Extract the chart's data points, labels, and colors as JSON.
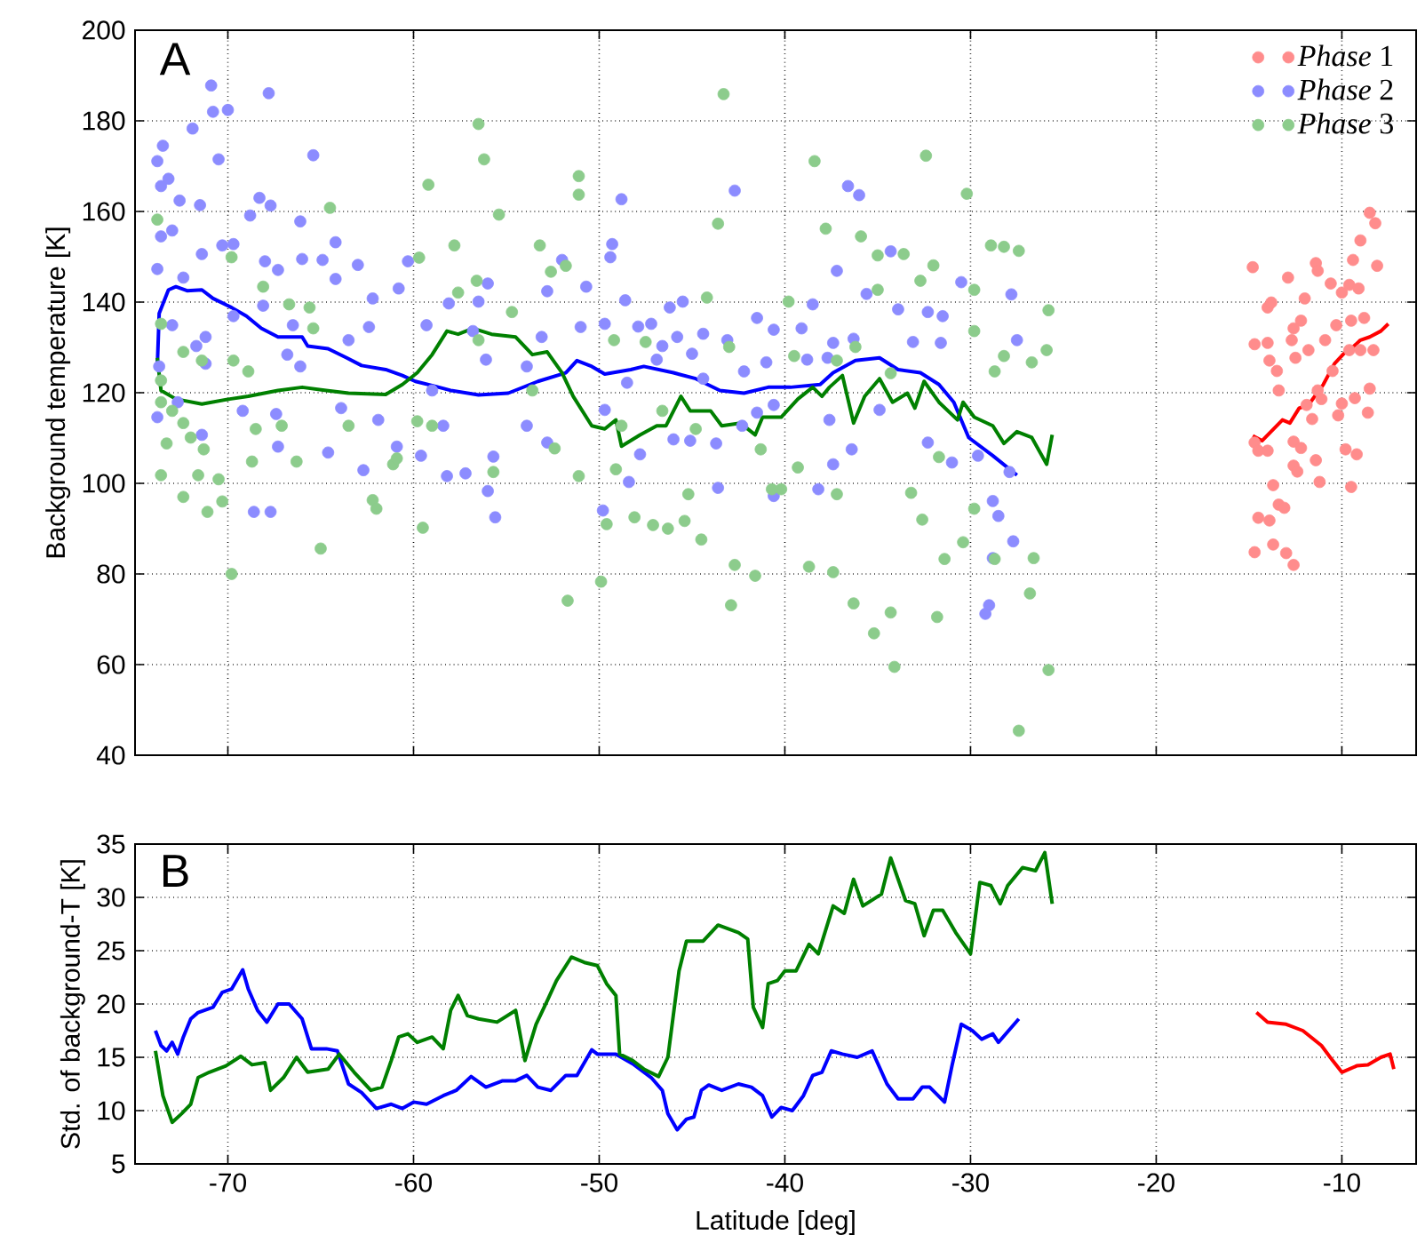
{
  "chart_data": [
    {
      "type": "scatter",
      "ylabel": "Background temperature [K]",
      "annotations": [
        "A"
      ],
      "xlim": [
        -75,
        -6
      ],
      "ylim": [
        40,
        200
      ],
      "xticks": [
        -70,
        -60,
        -50,
        -40,
        -30,
        -20,
        -10
      ],
      "yticks": [
        40,
        60,
        80,
        100,
        120,
        140,
        160,
        180,
        200
      ],
      "tick_labels": "y",
      "grid": true,
      "legend": "top right",
      "marker": "circle",
      "series": [
        {
          "name": "*Phase* 1",
          "color": "#ff8c8c",
          "x": [
            -14.8,
            -14.0,
            -13.8,
            -14.7,
            -14.0,
            -12.9,
            -12.0,
            -11.4,
            -11.3,
            -12.2,
            -12.6,
            -12.7,
            -11.8,
            -12.5,
            -13.9,
            -13.5,
            -10.9,
            -10.6,
            -10.0,
            -9.6,
            -9.1,
            -9.4,
            -9.0,
            -8.5,
            -8.2,
            -8.1,
            -10.3,
            -9.5,
            -8.8,
            -8.3,
            -9.6,
            -9.0,
            -10.5,
            -11.3,
            -11.1,
            -11.9,
            -13.4,
            -8.5,
            -9.3,
            -10.0,
            -10.2,
            -8.6,
            -11.6,
            -14.7,
            -14.5,
            -14.0,
            -12.6,
            -12.2,
            -12.6,
            -12.4,
            -11.4,
            -9.8,
            -9.2,
            -13.7,
            -11.2,
            -9.5,
            -13.4,
            -13.1,
            -14.5,
            -13.9,
            -14.7,
            -13.7,
            -13.0,
            -12.6
          ],
          "values": [
            147.7,
            138.8,
            139.9,
            130.7,
            131,
            145.4,
            140.8,
            148.6,
            146.9,
            135.9,
            134.2,
            131.6,
            129.4,
            127.7,
            127.1,
            124.8,
            131.6,
            144.1,
            142.1,
            143.8,
            143.0,
            149.3,
            153.6,
            159.7,
            157.4,
            148.0,
            134.9,
            135.9,
            136.5,
            129.4,
            129.4,
            129.4,
            124.8,
            120.5,
            118.6,
            117.3,
            120.5,
            120.9,
            118.8,
            117.6,
            115.0,
            115.6,
            114.2,
            109,
            107.2,
            107.2,
            109.2,
            107.8,
            103.9,
            102.6,
            105.1,
            107.5,
            106.4,
            99.6,
            100.3,
            99.2,
            95.3,
            94.6,
            92.4,
            91.8,
            84.8,
            86.5,
            84.6,
            82.0
          ]
        },
        {
          "name": "*Phase* 2",
          "color": "#8c8cff",
          "x": [
            -70.9,
            -70.8,
            -70.0,
            -67.8,
            -71.9,
            -73.5,
            -73.8,
            -73.6,
            -73.2,
            -72.6,
            -71.5,
            -70.5,
            -65.4,
            -68.3,
            -68.8,
            -67.7,
            -66.1,
            -73.0,
            -73.6,
            -71.4,
            -70.3,
            -69.7,
            -64.2,
            -64.9,
            -68.0,
            -66.0,
            -63.0,
            -60.3,
            -73.8,
            -72.4,
            -67.3,
            -64.2,
            -60.8,
            -62.2,
            -58.1,
            -56.5,
            -56.0,
            -52.8,
            -52.0,
            -50.7,
            -69.7,
            -68.1,
            -73.0,
            -71.2,
            -66.5,
            -62.4,
            -59.3,
            -56.8,
            -53.1,
            -51.0,
            -66.8,
            -63.5,
            -73.7,
            -71.2,
            -66.1,
            -59.0,
            -56.1,
            -53.9,
            -72.7,
            -69.2,
            -67.4,
            -63.9,
            -61.9,
            -58.4,
            -53.9,
            -52.8,
            -73.8,
            -71.4,
            -67.3,
            -64.6,
            -60.9,
            -59.6,
            -58.2,
            -57.2,
            -62.7,
            -55.7,
            -56.0,
            -55.6,
            -68.6,
            -67.7,
            -71.7,
            -48.8,
            -42.7,
            -49.3,
            -49.4,
            -37.2,
            -36.6,
            -36.0,
            -34.3,
            -30.5,
            -27.8,
            -48.6,
            -46.2,
            -45.5,
            -41.5,
            -38.5,
            -35.6,
            -33.9,
            -32.3,
            -31.5,
            -49.7,
            -47.9,
            -47.2,
            -45.8,
            -44.4,
            -43.1,
            -40.6,
            -39.1,
            -37.4,
            -36.3,
            -33.1,
            -31.6,
            -27.5,
            -46.6,
            -45.0,
            -41.0,
            -38.8,
            -37.7,
            -46.9,
            -48.5,
            -44.4,
            -42.2,
            -49.7,
            -47.8,
            -46.0,
            -45.1,
            -43.7,
            -42.3,
            -41.5,
            -40.6,
            -37.6,
            -36.4,
            -34.9,
            -32.3,
            -31.0,
            -29.6,
            -28.8,
            -28.5,
            -27.7,
            -28.8,
            -29.0,
            -29.2,
            -49.8,
            -38.2,
            -37.4,
            -40.6,
            -48.4,
            -43.6,
            -27.9
          ],
          "values": [
            187.8,
            182,
            182.4,
            186.1,
            178.3,
            174.5,
            171.1,
            165.6,
            167.2,
            162.4,
            161.4,
            171.5,
            172.4,
            163,
            159.1,
            161.3,
            157.8,
            155.8,
            154.5,
            150.6,
            152.5,
            152.8,
            153.2,
            149.3,
            149,
            149.5,
            148.2,
            149,
            147.3,
            145.4,
            147.1,
            145.1,
            143,
            140.8,
            139.7,
            140.1,
            144.1,
            142.4,
            149.3,
            143.4,
            136.9,
            139.2,
            134.9,
            132.3,
            134.9,
            134.5,
            134.9,
            133.6,
            132.3,
            134.5,
            128.4,
            131.6,
            125.8,
            126.4,
            125.8,
            120.5,
            127.3,
            125.8,
            117.9,
            116,
            115.3,
            116.6,
            114,
            112.7,
            112.7,
            109,
            114.6,
            110.7,
            108.1,
            106.8,
            108.1,
            106.1,
            101.6,
            102.2,
            102.9,
            105.9,
            98.3,
            92.5,
            93.7,
            93.7,
            130.3,
            162.7,
            164.6,
            152.8,
            149.9,
            146.9,
            165.6,
            163.6,
            151.2,
            144.4,
            141.7,
            140.4,
            138.8,
            140.1,
            136.5,
            139.5,
            141.8,
            138.4,
            137.8,
            136.9,
            135.2,
            134.6,
            135.2,
            132.3,
            133,
            131.6,
            133.9,
            134.2,
            131,
            131.9,
            131.2,
            131,
            131.6,
            130.3,
            128.6,
            126.7,
            127.3,
            127.7,
            127.3,
            122.2,
            123.1,
            124.7,
            116.2,
            106.4,
            109.7,
            109.4,
            108.8,
            112.7,
            115.6,
            117.3,
            114,
            107.5,
            116.2,
            109,
            104.6,
            106.1,
            96.1,
            92.8,
            87.2,
            83.5,
            73.1,
            71.2,
            94.0,
            98.7,
            104.2,
            97.2,
            100.3,
            99,
            102.5
          ]
        },
        {
          "name": "*Phase* 3",
          "color": "#8ccc8c",
          "x": [
            -56.5,
            -56.2,
            -59.2,
            -51.1,
            -51.1,
            -55.4,
            -64.5,
            -73.8,
            -69.8,
            -57.8,
            -53.2,
            -59.7,
            -52.6,
            -51.8,
            -57.6,
            -56.6,
            -68.1,
            -65.6,
            -66.7,
            -54.7,
            -73.6,
            -72.4,
            -71.4,
            -69.7,
            -68.9,
            -65.4,
            -73.6,
            -73.6,
            -73.0,
            -72.4,
            -72.0,
            -73.3,
            -71.3,
            -68.5,
            -68.7,
            -67.1,
            -66.3,
            -63.5,
            -61.1,
            -60.9,
            -59.8,
            -59.0,
            -73.6,
            -71.6,
            -70.5,
            -72.4,
            -71.1,
            -70.3,
            -62.2,
            -62.0,
            -59.5,
            -65.0,
            -69.8,
            -51.7,
            -55.7,
            -52.4,
            -53.6,
            -56.5,
            -49.9,
            -43.3,
            -38.4,
            -32.4,
            -30.2,
            -43.6,
            -37.8,
            -35.9,
            -35.0,
            -33.6,
            -32.0,
            -28.9,
            -28.2,
            -27.4,
            -32.7,
            -29.8,
            -25.8,
            -25.9,
            -26.7,
            -28.2,
            -44.2,
            -39.8,
            -36.2,
            -35.0,
            -49.2,
            -47.5,
            -43.0,
            -39.5,
            -46.6,
            -44.8,
            -41.3,
            -48.8,
            -49.1,
            -39.3,
            -31.7,
            -49.6,
            -48.1,
            -47.1,
            -46.3,
            -45.4,
            -44.5,
            -45.2,
            -40.7,
            -40.2,
            -37.2,
            -33.2,
            -32.6,
            -29.8,
            -30.4,
            -31.4,
            -28.7,
            -26.6,
            -26.8,
            -37.4,
            -38.7,
            -41.6,
            -42.7,
            -42.9,
            -36.3,
            -35.2,
            -34.3,
            -31.8,
            -34.1,
            -25.8,
            -27.4,
            -34.3,
            -37.2,
            -29.8,
            -28.7,
            -51.1
          ],
          "values": [
            179.3,
            171.5,
            165.9,
            167.8,
            163.7,
            159.3,
            160.8,
            158.2,
            149.9,
            152.5,
            152.5,
            149.8,
            146.7,
            148,
            142.1,
            144.7,
            143.4,
            138.8,
            139.5,
            137.8,
            135.2,
            129,
            127.1,
            127.1,
            124.7,
            134.2,
            122.7,
            117.9,
            116,
            113.3,
            110.1,
            108.8,
            107.5,
            112,
            104.8,
            112.7,
            104.8,
            112.7,
            104.2,
            105.5,
            113.7,
            112.7,
            101.8,
            101.8,
            100.9,
            97.0,
            93.7,
            96.0,
            96.3,
            94.4,
            90.2,
            85.6,
            80.0,
            74.1,
            102.5,
            107.7,
            120.5,
            131.6,
            78.3,
            185.9,
            171.1,
            172.3,
            163.9,
            157.3,
            156.2,
            154.5,
            150.3,
            150.6,
            148.1,
            152.5,
            152.2,
            151.3,
            144.7,
            142.7,
            138.2,
            129.4,
            126.7,
            128.1,
            141,
            140.1,
            130.1,
            142.7,
            131.6,
            131.2,
            130.1,
            128.1,
            116,
            112.0,
            107.5,
            112.7,
            103.1,
            103.5,
            105.8,
            91.0,
            92.5,
            90.8,
            90,
            91.7,
            87.6,
            97.6,
            98.7,
            98.7,
            97.6,
            97.9,
            92.0,
            94.4,
            87.0,
            83.3,
            83.3,
            83.5,
            75.7,
            80.4,
            81.6,
            79.6,
            82.0,
            73.1,
            73.5,
            66.9,
            71.5,
            70.5,
            59.5,
            58.8,
            45.4,
            124.3,
            127.1,
            133.6,
            124.7,
            101.6
          ]
        },
        {
          "type": "line",
          "marker": "none",
          "color": "#ff0000",
          "x": [
            -14.8,
            -14.3,
            -13.2,
            -12.8,
            -12.3,
            -11.8,
            -11.0,
            -10.4,
            -9.9,
            -9.5,
            -9.0,
            -8.5,
            -7.9,
            -7.5
          ],
          "values": [
            110.5,
            109.4,
            114.0,
            113.3,
            116.6,
            117.3,
            121.8,
            126.4,
            128.6,
            129.7,
            131.6,
            132.3,
            133.6,
            135.2
          ]
        },
        {
          "type": "line",
          "marker": "none",
          "color": "#0000ff",
          "x": [
            -73.8,
            -73.7,
            -73.2,
            -72.8,
            -72.2,
            -71.4,
            -70.8,
            -69.8,
            -69.0,
            -68.2,
            -67.3,
            -66.0,
            -65.7,
            -64.6,
            -63.6,
            -62.8,
            -61.5,
            -60.6,
            -59.9,
            -59.0,
            -58.0,
            -56.5,
            -54.9,
            -53.3,
            -51.8,
            -51.2,
            -50.4,
            -49.7,
            -48.3,
            -47.6,
            -46.0,
            -44.8,
            -43.5,
            -42.2,
            -40.9,
            -39.7,
            -38.1,
            -37.4,
            -36.2,
            -34.9,
            -33.9,
            -32.7,
            -31.7,
            -30.9,
            -30.1,
            -28.8,
            -27.5
          ],
          "values": [
            125.8,
            137.5,
            142.7,
            143.4,
            142.5,
            142.7,
            140.8,
            138.8,
            136.9,
            134.2,
            132.3,
            132.3,
            130.3,
            129.7,
            127.7,
            126.0,
            125.1,
            123.8,
            122.5,
            121.6,
            120.5,
            119.5,
            119.9,
            122.5,
            124.4,
            127.1,
            125.8,
            124.1,
            125.1,
            125.8,
            124.4,
            123.1,
            120.5,
            119.9,
            121.2,
            121.2,
            121.8,
            124.4,
            127.1,
            127.7,
            125.1,
            124.4,
            121.8,
            117.9,
            110.1,
            106.1,
            101.8
          ]
        },
        {
          "type": "line",
          "marker": "none",
          "color": "#008000",
          "x": [
            -73.8,
            -73.6,
            -72.8,
            -71.4,
            -69.9,
            -68.9,
            -67.3,
            -66.0,
            -64.7,
            -63.5,
            -61.5,
            -60.6,
            -59.8,
            -59.0,
            -58.2,
            -57.6,
            -56.8,
            -55.8,
            -54.5,
            -53.6,
            -52.8,
            -52.0,
            -51.4,
            -50.4,
            -49.7,
            -49.1,
            -48.8,
            -47.8,
            -46.9,
            -46.4,
            -45.6,
            -45.1,
            -44.0,
            -43.4,
            -42.4,
            -41.6,
            -41.2,
            -40.2,
            -39.3,
            -38.5,
            -38.0,
            -37.6,
            -36.9,
            -36.3,
            -35.7,
            -34.9,
            -34.2,
            -33.4,
            -33.0,
            -32.5,
            -31.7,
            -30.7,
            -30.4,
            -29.8,
            -28.8,
            -28.2,
            -27.5,
            -26.7,
            -25.9,
            -25.6
          ],
          "values": [
            127.7,
            120.5,
            118.6,
            117.5,
            118.6,
            119.2,
            120.5,
            121.2,
            120.5,
            119.9,
            119.6,
            121.8,
            124.4,
            128.4,
            133.6,
            132.9,
            134.2,
            132.9,
            132.3,
            128.4,
            129.0,
            124.4,
            119.2,
            112.7,
            112.0,
            114,
            108.2,
            110.7,
            112.7,
            112.7,
            119.2,
            116,
            116,
            112.7,
            113.3,
            110.7,
            114.6,
            114.6,
            118.6,
            121.2,
            119.2,
            121.2,
            123.8,
            113.3,
            119.2,
            123.1,
            117.9,
            119.9,
            116.6,
            122.5,
            117.9,
            114.0,
            117.9,
            114.6,
            112.7,
            108.8,
            111.4,
            110.1,
            104.2,
            110.7
          ]
        }
      ]
    },
    {
      "type": "line",
      "xlabel": "Latitude [deg]",
      "ylabel": "Std. of background-T [K]",
      "annotations": [
        "B"
      ],
      "xlim": [
        -75,
        -6
      ],
      "ylim": [
        5,
        35
      ],
      "xticks": [
        -70,
        -60,
        -50,
        -40,
        -30,
        -20,
        -10
      ],
      "yticks": [
        5,
        10,
        15,
        20,
        25,
        30,
        35
      ],
      "grid": true,
      "series": [
        {
          "color": "#ff0000",
          "x": [
            -14.6,
            -14.0,
            -13.0,
            -12.1,
            -11.1,
            -10.5,
            -10.0,
            -9.2,
            -8.6,
            -7.9,
            -7.4,
            -7.2
          ],
          "values": [
            19.2,
            18.3,
            18.1,
            17.5,
            16.1,
            14.7,
            13.6,
            14.2,
            14.3,
            15.0,
            15.3,
            13.9
          ]
        },
        {
          "color": "#0000ff",
          "x": [
            -73.9,
            -73.6,
            -73.3,
            -73.0,
            -72.7,
            -72.4,
            -72.0,
            -71.6,
            -70.8,
            -70.3,
            -69.8,
            -69.2,
            -68.9,
            -68.4,
            -67.9,
            -67.3,
            -66.7,
            -66.0,
            -65.5,
            -64.7,
            -64.1,
            -63.5,
            -62.8,
            -62.0,
            -61.2,
            -60.6,
            -60.0,
            -59.3,
            -58.4,
            -57.7,
            -56.9,
            -56.1,
            -55.2,
            -54.5,
            -53.9,
            -53.3,
            -52.6,
            -51.8,
            -51.2,
            -50.4,
            -50.1,
            -49.1,
            -48.2,
            -47.2,
            -46.6,
            -46.3,
            -45.8,
            -45.3,
            -44.9,
            -44.5,
            -44.1,
            -43.4,
            -42.5,
            -41.8,
            -41.2,
            -40.7,
            -40.2,
            -39.6,
            -39.0,
            -38.5,
            -38.0,
            -37.5,
            -36.9,
            -36.1,
            -35.3,
            -34.5,
            -33.9,
            -33.1,
            -32.6,
            -32.2,
            -31.4,
            -31.0,
            -30.5,
            -29.9,
            -29.4,
            -28.8,
            -28.5,
            -27.4
          ],
          "values": [
            17.5,
            16.1,
            15.6,
            16.4,
            15.3,
            16.9,
            18.6,
            19.2,
            19.7,
            21.1,
            21.4,
            23.2,
            21.4,
            19.4,
            18.3,
            20.0,
            20.0,
            18.6,
            15.8,
            15.8,
            15.6,
            12.5,
            11.7,
            10.2,
            10.6,
            10.2,
            10.8,
            10.6,
            11.4,
            11.9,
            13.2,
            12.2,
            12.8,
            12.8,
            13.3,
            12.2,
            11.9,
            13.3,
            13.3,
            15.7,
            15.3,
            15.3,
            14.4,
            13.1,
            11.9,
            9.7,
            8.2,
            9.2,
            9.4,
            11.9,
            12.4,
            11.9,
            12.5,
            12.2,
            11.4,
            9.4,
            10.3,
            10.0,
            11.4,
            13.3,
            13.6,
            15.6,
            15.3,
            15.0,
            15.6,
            12.5,
            11.1,
            11.1,
            12.2,
            12.2,
            10.8,
            14.2,
            18.1,
            17.5,
            16.7,
            17.2,
            16.4,
            18.6
          ]
        },
        {
          "color": "#008000",
          "x": [
            -73.9,
            -73.5,
            -73.0,
            -72.5,
            -72.0,
            -71.6,
            -71.0,
            -70.1,
            -69.3,
            -68.7,
            -68.0,
            -67.7,
            -67.0,
            -66.3,
            -65.7,
            -64.6,
            -64.0,
            -63.2,
            -62.3,
            -61.7,
            -61.2,
            -60.8,
            -60.3,
            -59.8,
            -59.0,
            -58.4,
            -58.0,
            -57.6,
            -57.1,
            -56.5,
            -55.5,
            -54.5,
            -54.0,
            -53.4,
            -52.8,
            -52.3,
            -51.5,
            -50.8,
            -50.1,
            -49.6,
            -49.1,
            -48.9,
            -48.2,
            -47.6,
            -46.8,
            -46.3,
            -45.7,
            -45.3,
            -44.4,
            -43.6,
            -42.5,
            -42.0,
            -41.7,
            -41.2,
            -40.9,
            -40.4,
            -40.0,
            -39.4,
            -38.7,
            -38.2,
            -37.4,
            -36.8,
            -36.3,
            -35.8,
            -34.8,
            -34.3,
            -33.5,
            -33.0,
            -32.5,
            -32.0,
            -31.5,
            -30.8,
            -30.0,
            -29.5,
            -28.9,
            -28.4,
            -28.0,
            -27.2,
            -26.5,
            -26.0,
            -25.6
          ],
          "values": [
            15.6,
            11.4,
            8.9,
            9.7,
            10.6,
            13.1,
            13.6,
            14.2,
            15.1,
            14.3,
            14.5,
            11.9,
            13.1,
            15.0,
            13.6,
            13.9,
            15.3,
            13.6,
            11.9,
            12.2,
            14.7,
            16.9,
            17.2,
            16.4,
            16.9,
            15.8,
            19.4,
            20.8,
            18.9,
            18.6,
            18.3,
            19.4,
            14.7,
            18.1,
            20.3,
            22.2,
            24.4,
            23.9,
            23.6,
            21.9,
            20.8,
            15.3,
            14.7,
            13.9,
            13.2,
            15.0,
            23.1,
            25.9,
            25.9,
            27.4,
            26.7,
            26.1,
            19.7,
            17.8,
            21.9,
            22.2,
            23.1,
            23.1,
            25.6,
            24.7,
            29.2,
            28.5,
            31.7,
            29.2,
            30.3,
            33.7,
            29.7,
            29.4,
            26.4,
            28.8,
            28.8,
            26.7,
            24.7,
            31.4,
            31.1,
            29.4,
            31.1,
            32.8,
            32.5,
            34.2,
            29.4
          ]
        }
      ]
    }
  ]
}
